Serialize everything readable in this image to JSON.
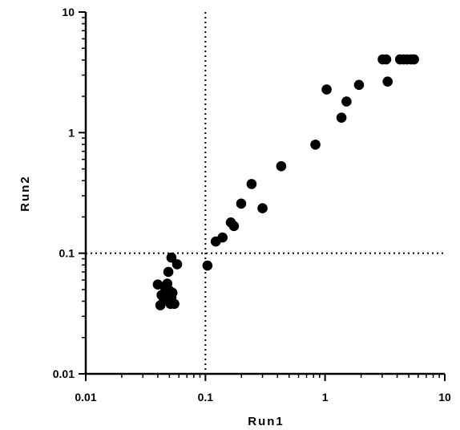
{
  "chart_data": {
    "type": "scatter",
    "title": "",
    "xlabel": "Run1",
    "ylabel": "Run2",
    "xscale": "log",
    "yscale": "log",
    "xlim": [
      0.01,
      10
    ],
    "ylim": [
      0.01,
      10
    ],
    "x_ticks": [
      0.01,
      0.1,
      1,
      10
    ],
    "x_tick_labels": [
      "0.01",
      "0.1",
      "1",
      "10"
    ],
    "y_ticks": [
      0.01,
      0.1,
      1,
      10
    ],
    "y_tick_labels": [
      "0.01",
      "0.1",
      "1",
      "10"
    ],
    "grid": false,
    "reference_lines": [
      {
        "orientation": "vertical",
        "value": 0.1,
        "style": "dotted"
      },
      {
        "orientation": "horizontal",
        "value": 0.1,
        "style": "dotted"
      }
    ],
    "marker_color": "#000000",
    "points": [
      {
        "x": 0.04,
        "y": 0.055
      },
      {
        "x": 0.042,
        "y": 0.037
      },
      {
        "x": 0.043,
        "y": 0.045
      },
      {
        "x": 0.045,
        "y": 0.041
      },
      {
        "x": 0.046,
        "y": 0.052
      },
      {
        "x": 0.047,
        "y": 0.047
      },
      {
        "x": 0.048,
        "y": 0.056
      },
      {
        "x": 0.049,
        "y": 0.041
      },
      {
        "x": 0.049,
        "y": 0.07
      },
      {
        "x": 0.05,
        "y": 0.049
      },
      {
        "x": 0.051,
        "y": 0.038
      },
      {
        "x": 0.052,
        "y": 0.043
      },
      {
        "x": 0.052,
        "y": 0.092
      },
      {
        "x": 0.053,
        "y": 0.047
      },
      {
        "x": 0.055,
        "y": 0.038
      },
      {
        "x": 0.058,
        "y": 0.081
      },
      {
        "x": 0.104,
        "y": 0.079
      },
      {
        "x": 0.122,
        "y": 0.125
      },
      {
        "x": 0.139,
        "y": 0.135
      },
      {
        "x": 0.163,
        "y": 0.18
      },
      {
        "x": 0.173,
        "y": 0.168
      },
      {
        "x": 0.199,
        "y": 0.258
      },
      {
        "x": 0.243,
        "y": 0.375
      },
      {
        "x": 0.3,
        "y": 0.236
      },
      {
        "x": 0.43,
        "y": 0.527
      },
      {
        "x": 0.83,
        "y": 0.795
      },
      {
        "x": 1.03,
        "y": 2.28
      },
      {
        "x": 1.37,
        "y": 1.33
      },
      {
        "x": 1.51,
        "y": 1.81
      },
      {
        "x": 1.92,
        "y": 2.49
      },
      {
        "x": 3.03,
        "y": 4.05
      },
      {
        "x": 3.24,
        "y": 4.05
      },
      {
        "x": 3.33,
        "y": 2.65
      },
      {
        "x": 4.23,
        "y": 4.05
      },
      {
        "x": 4.53,
        "y": 4.05
      },
      {
        "x": 4.83,
        "y": 4.05
      },
      {
        "x": 5.23,
        "y": 4.05
      },
      {
        "x": 5.53,
        "y": 4.05
      }
    ]
  }
}
